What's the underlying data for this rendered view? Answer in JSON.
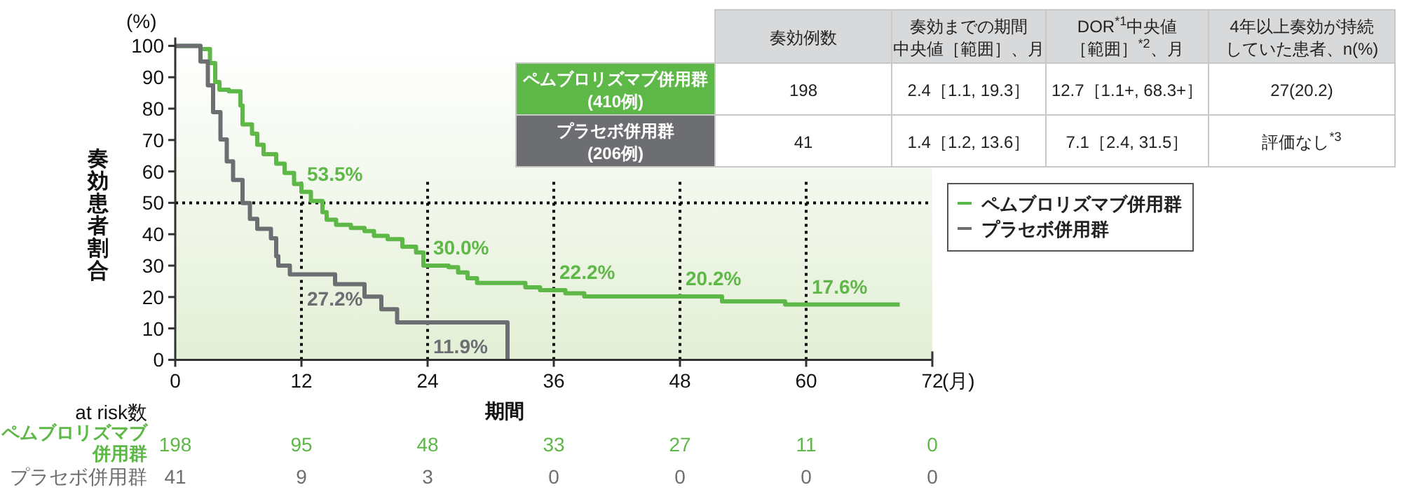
{
  "chart_data": {
    "type": "step",
    "xlabel": "期間",
    "ylabel": "奏効患者割合",
    "xlim": [
      0,
      72
    ],
    "ylim": [
      0,
      100
    ],
    "xticks": [
      0,
      12,
      24,
      36,
      48,
      60,
      72
    ],
    "yticks": [
      0,
      10,
      20,
      30,
      40,
      50,
      60,
      70,
      80,
      90,
      100
    ],
    "legend": "right",
    "line_style": "solid",
    "series": [
      {
        "name": "ペムブロリズマブ併用群",
        "color": "#5db847",
        "x": [
          0,
          2.4,
          3.3,
          3.8,
          4.2,
          5.1,
          6.2,
          6.4,
          7.3,
          7.8,
          8.4,
          9.6,
          10.4,
          11.3,
          12,
          12.9,
          14,
          14.4,
          15.3,
          16.7,
          18,
          18.9,
          20.2,
          21.6,
          22.9,
          23.6,
          26,
          26.9,
          27.8,
          28.7,
          33.3,
          34.7,
          37.1,
          38.9,
          52,
          58,
          68.9
        ],
        "values": [
          100,
          99,
          94.5,
          88.5,
          86,
          85.5,
          81,
          75,
          72,
          68.5,
          65.5,
          62.5,
          59.5,
          56,
          53.5,
          50.6,
          47,
          44.6,
          43,
          42,
          41,
          39.5,
          38.4,
          36,
          34.2,
          30,
          29.5,
          27.8,
          26,
          24.5,
          23.1,
          22.2,
          21.2,
          20.2,
          18.6,
          17.6,
          17.6
        ]
      },
      {
        "name": "プラセボ併用群",
        "color": "#6d6e71",
        "x": [
          0,
          2.4,
          3.1,
          3.6,
          4.3,
          4.9,
          5.5,
          6.4,
          7.1,
          7.8,
          9.1,
          9.6,
          9.8,
          10.9,
          15.2,
          18,
          19.6,
          21.1,
          31.6
        ],
        "values": [
          100,
          95,
          87.4,
          78.9,
          70.2,
          63.2,
          57.3,
          49.9,
          44.9,
          41.7,
          38.7,
          33,
          30,
          27.2,
          24.1,
          20.1,
          16.1,
          11.9,
          0
        ]
      }
    ],
    "ref_lines": [
      {
        "axis": "y",
        "value": 50,
        "color": "#000000",
        "line_style": "dotted"
      },
      {
        "axis": "x",
        "value": 12,
        "color": "#000000",
        "line_style": "dotted"
      },
      {
        "axis": "x",
        "value": 24,
        "color": "#000000",
        "line_style": "dotted"
      },
      {
        "axis": "x",
        "value": 36,
        "color": "#000000",
        "line_style": "dotted"
      },
      {
        "axis": "x",
        "value": 48,
        "color": "#000000",
        "line_style": "dotted"
      },
      {
        "axis": "x",
        "value": 60,
        "color": "#000000",
        "line_style": "dotted"
      }
    ],
    "annotations": [
      "(%)",
      "(月)",
      {
        "text": "53.5%",
        "x": 12,
        "y": 53.5
      },
      {
        "text": "30.0%",
        "x": 24,
        "y": 30
      },
      {
        "text": "22.2%",
        "x": 36,
        "y": 22.2
      },
      {
        "text": "20.2%",
        "x": 48,
        "y": 20.2
      },
      {
        "text": "17.6%",
        "x": 60,
        "y": 17.6
      },
      {
        "text": "27.2%",
        "x": 12,
        "y": 27.2
      },
      {
        "text": "11.9%",
        "x": 24,
        "y": 11.9
      },
      "奏効例数",
      "奏効までの期間",
      "中央値［範囲］、月",
      "DOR$^{*1}$中央値",
      "［範囲］$^{*2}$、月",
      "4年以上奏効が持続",
      "していた患者、n(%)",
      "ペムブロリズマブ併用群",
      "(410例)",
      "198",
      "2.4［1.1, 19.3］",
      "12.7［1.1+, 68.3+］",
      "27(20.2)",
      "プラセボ併用群",
      "(206例)",
      "41",
      "1.4［1.2, 13.6］",
      "7.1［2.4, 31.5］",
      "評価なし$^{*3}$",
      "at risk数",
      "ペムブロリズマブ",
      "併用群",
      "198",
      "95",
      "48",
      "33",
      "27",
      "11",
      "0",
      "プラセボ併用群",
      "41",
      "9",
      "3",
      "0",
      "0",
      "0",
      "0"
    ]
  }
}
